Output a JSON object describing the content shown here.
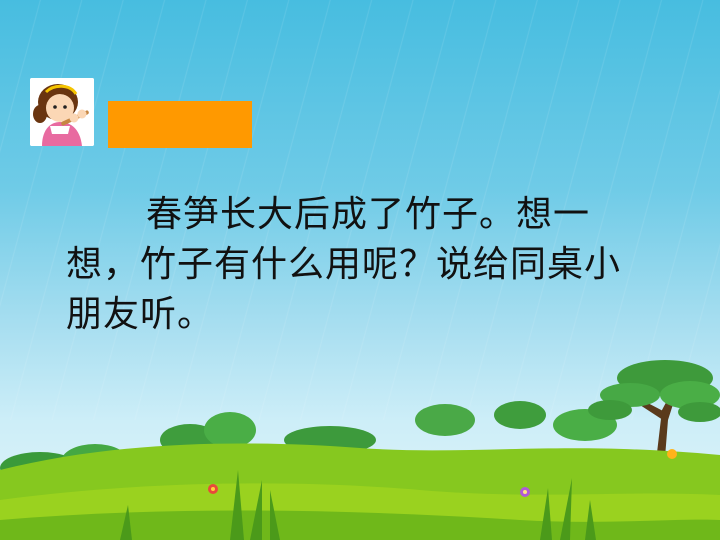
{
  "slide": {
    "paragraph": "春笋长大后成了竹子。想一想，竹子有什么用呢？说给同桌小朋友听。",
    "title_box_color": "#ff9900",
    "icons": {
      "avatar": "girl-playing-flute-icon"
    }
  }
}
